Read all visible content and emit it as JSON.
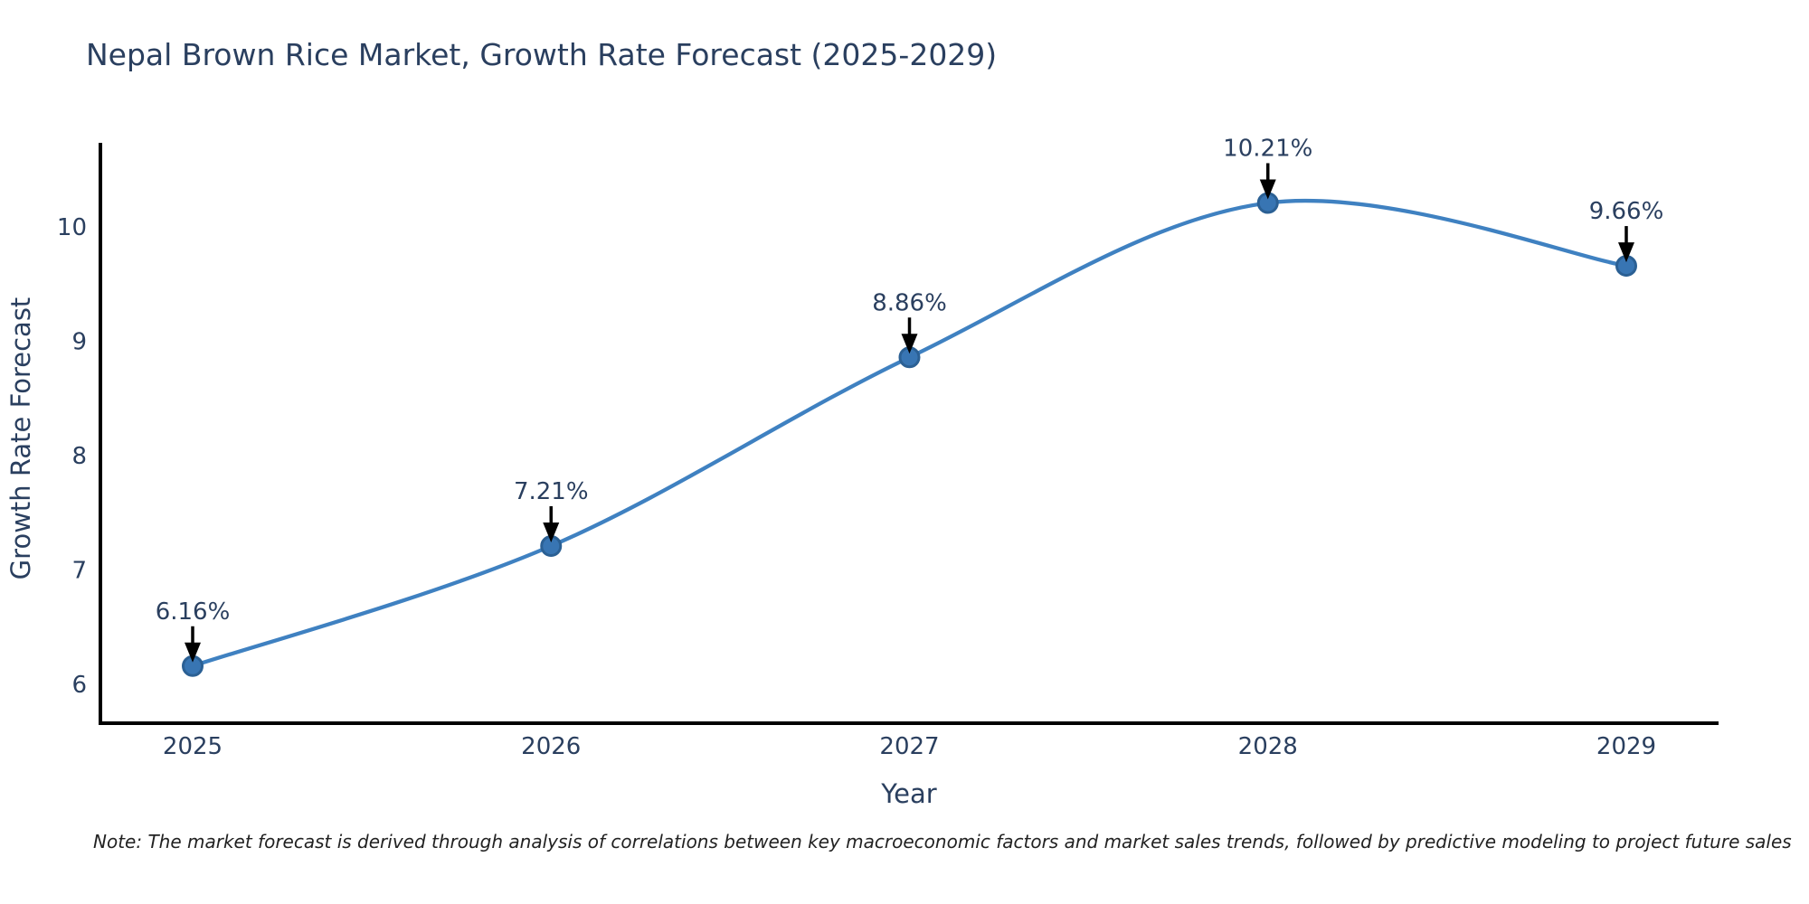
{
  "chart_data": {
    "type": "line",
    "title": "Nepal Brown Rice Market, Growth Rate Forecast (2025-2029)",
    "xlabel": "Year",
    "ylabel": "Growth Rate Forecast",
    "categories": [
      "2025",
      "2026",
      "2027",
      "2028",
      "2029"
    ],
    "values": [
      6.16,
      7.21,
      8.86,
      10.21,
      9.66
    ],
    "point_labels": [
      "6.16%",
      "7.21%",
      "8.86%",
      "10.21%",
      "9.66%"
    ],
    "y_ticks": [
      "6",
      "7",
      "8",
      "9",
      "10"
    ],
    "ylim": [
      5.66,
      10.72
    ],
    "line_shape": "spline",
    "grid": false,
    "legend": "none",
    "markers": true,
    "note": "Note: The market forecast is derived through analysis of correlations between key macroeconomic factors and market sales trends, followed by predictive modeling to project future sales",
    "colors": {
      "background": "#ffffff",
      "line": "#3f81c1",
      "marker": "#3875b3",
      "marker_edge": "#2b6094",
      "axis": "#000000",
      "text": "#2a3f5f",
      "annotation_arrow": "#000000",
      "note_text": "#222222"
    }
  }
}
